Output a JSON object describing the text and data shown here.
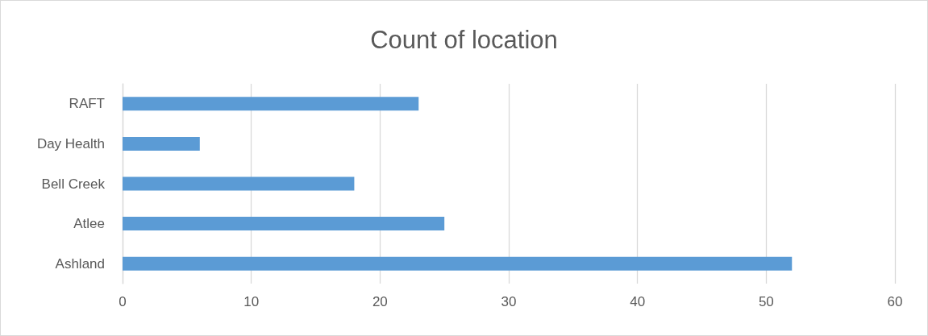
{
  "chart_data": {
    "type": "bar",
    "orientation": "horizontal",
    "title": "Count of location",
    "categories": [
      "RAFT",
      "Day Health",
      "Bell Creek",
      "Atlee",
      "Ashland"
    ],
    "values": [
      23,
      6,
      18,
      25,
      52
    ],
    "color": "#5b9bd5",
    "xlim": [
      0,
      60
    ],
    "xticks": [
      0,
      10,
      20,
      30,
      40,
      50,
      60
    ],
    "grid": "x"
  }
}
